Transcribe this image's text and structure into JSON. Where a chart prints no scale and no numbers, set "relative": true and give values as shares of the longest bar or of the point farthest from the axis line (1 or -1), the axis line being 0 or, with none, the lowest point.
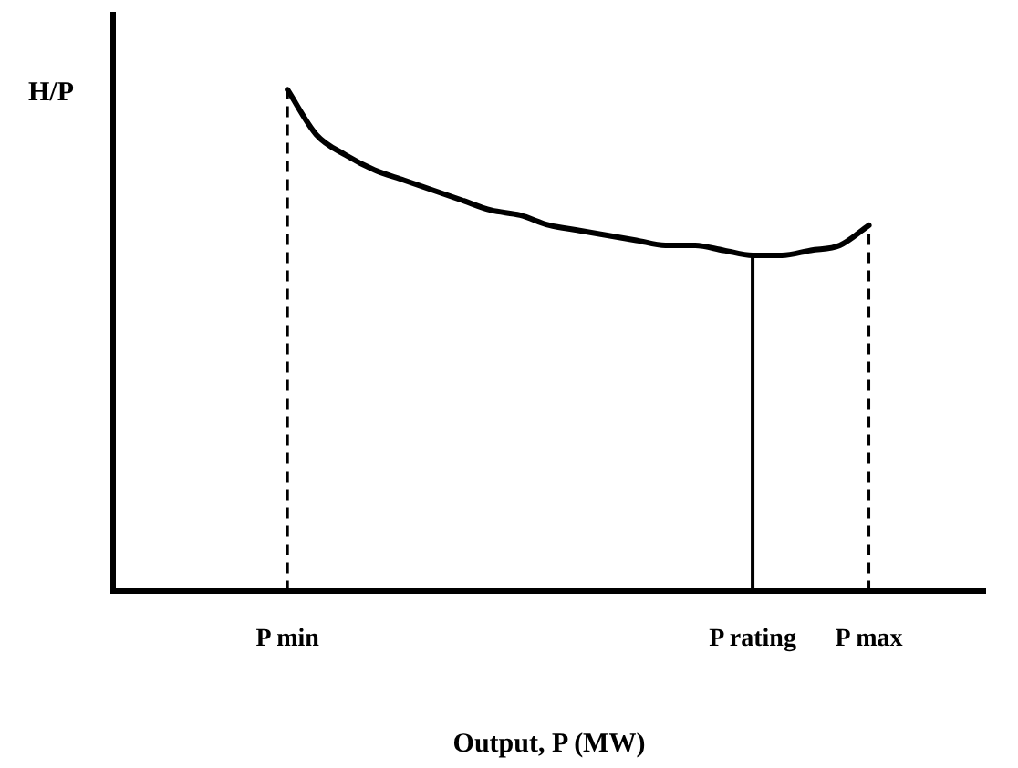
{
  "chart_data": {
    "type": "line",
    "relative": true,
    "xlabel": "Output, P (MW)",
    "ylabel": "H/P",
    "categories": [
      null,
      null,
      null,
      null,
      null,
      null,
      "P min",
      null,
      null,
      null,
      null,
      null,
      null,
      null,
      null,
      null,
      null,
      null,
      null,
      null,
      null,
      null,
      "P rating",
      null,
      null,
      null,
      "P max",
      null,
      null,
      null,
      null
    ],
    "series": [
      {
        "color": "#000000",
        "values": [
          null,
          null,
          null,
          null,
          null,
          null,
          1.0,
          0.91,
          0.87,
          0.84,
          0.82,
          0.8,
          0.78,
          0.76,
          0.75,
          0.73,
          0.72,
          0.71,
          0.7,
          0.69,
          0.69,
          0.68,
          0.67,
          0.67,
          0.68,
          0.69,
          0.73,
          null,
          null,
          null,
          null
        ]
      }
    ],
    "ref_lines": [
      {
        "axis": "x",
        "value": "P min",
        "line_style": "dashed",
        "color": "#000000"
      },
      {
        "axis": "x",
        "value": "P rating",
        "line_style": "solid",
        "color": "#000000"
      },
      {
        "axis": "x",
        "value": "P max",
        "line_style": "dashed",
        "color": "#000000"
      }
    ],
    "grid": false,
    "legend": false,
    "marker": "none",
    "line_style": "solid"
  }
}
